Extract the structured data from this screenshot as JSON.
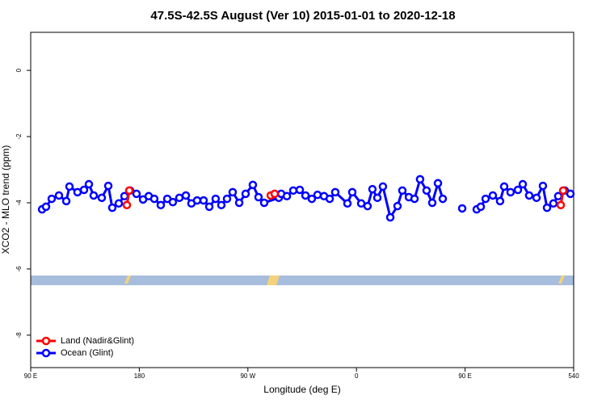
{
  "chart_data": {
    "type": "line",
    "title": "47.5S-42.5S August (Ver 10)   2015-01-01 to 2020-12-18",
    "x_label": "Longitude (deg E)",
    "y_label": "XCO2 - MLO trend (ppm)",
    "xlim": [
      90,
      540
    ],
    "ylim": [
      -8.98,
      1.15
    ],
    "xticks": [
      {
        "value": 90,
        "label": "90 E"
      },
      180,
      {
        "value": 270,
        "label": "90 W"
      },
      {
        "value": 360,
        "label": "0"
      },
      {
        "value": 450,
        "label": "90 E"
      },
      540
    ],
    "yticks": [
      -8,
      -6,
      -4,
      -2,
      0
    ],
    "legend": "bottom-left",
    "series": [
      {
        "name": "Land (Nadir&Glint)",
        "color": "#ff0000",
        "x": [
          169.7,
          171.7,
          230,
          288.9,
          292.2,
          410,
          529.3,
          531.3
        ],
        "values": [
          -4.07,
          -3.63,
          null,
          -3.78,
          -3.73,
          null,
          -4.07,
          -3.63
        ]
      },
      {
        "name": "Ocean (Glint)",
        "color": "#0000ff",
        "x": [
          99.4,
          102.7,
          107.4,
          113.4,
          119.5,
          122.1,
          128.8,
          134.2,
          138.2,
          142.2,
          148.9,
          154.3,
          157.6,
          163.0,
          167.7,
          172.4,
          177.7,
          183.1,
          187.8,
          192.4,
          197.8,
          203.2,
          207.8,
          213.2,
          218.6,
          223.2,
          227.9,
          233.3,
          238.0,
          243.3,
          248.0,
          252.7,
          257.4,
          262.8,
          268.1,
          274.1,
          278.8,
          283.5,
          295.6,
          297.6,
          302.3,
          307.6,
          313.0,
          317.7,
          323.0,
          327.7,
          333.1,
          337.8,
          342.4,
          352.5,
          356.5,
          363.9,
          369.2,
          373.2,
          377.3,
          381.9,
          388.0,
          394.0,
          398.0,
          403.4,
          408.1,
          412.7,
          418.1,
          422.8,
          427.5,
          431.5,
          439.5,
          447.6,
          453.6,
          459.6,
          463.0,
          467.0,
          473.0,
          479.0,
          482.4,
          487.7,
          493.8,
          497.8,
          503.1,
          509.2,
          514.5,
          517.9,
          523.2,
          527.2,
          532.6,
          537.3
        ],
        "values": [
          -4.2,
          -4.12,
          -3.88,
          -3.78,
          -3.95,
          -3.51,
          -3.68,
          -3.61,
          -3.44,
          -3.78,
          -3.85,
          -3.49,
          -4.15,
          -4.02,
          -3.8,
          -3.63,
          -3.73,
          -3.9,
          -3.8,
          -3.88,
          -4.07,
          -3.88,
          -3.98,
          -3.85,
          -3.78,
          -4.02,
          -3.93,
          -3.93,
          -4.12,
          -3.88,
          -4.07,
          -3.88,
          -3.68,
          -4.0,
          -3.73,
          -3.46,
          -3.83,
          -4.0,
          -3.85,
          -3.73,
          -3.8,
          -3.63,
          -3.61,
          -3.78,
          -3.88,
          -3.76,
          -3.8,
          -3.88,
          -3.68,
          -4.02,
          -3.68,
          -4.02,
          -4.1,
          -3.59,
          -3.85,
          -3.51,
          -4.44,
          -4.1,
          -3.63,
          -3.83,
          -3.88,
          -3.29,
          -3.63,
          -4.0,
          -3.41,
          -3.88,
          null,
          -4.17,
          null,
          -4.2,
          -4.12,
          -3.88,
          -3.78,
          -3.95,
          -3.51,
          -3.68,
          -3.61,
          -3.44,
          -3.78,
          -3.85,
          -3.49,
          -4.15,
          -4.02,
          -3.8,
          -3.63,
          -3.73
        ]
      }
    ]
  }
}
